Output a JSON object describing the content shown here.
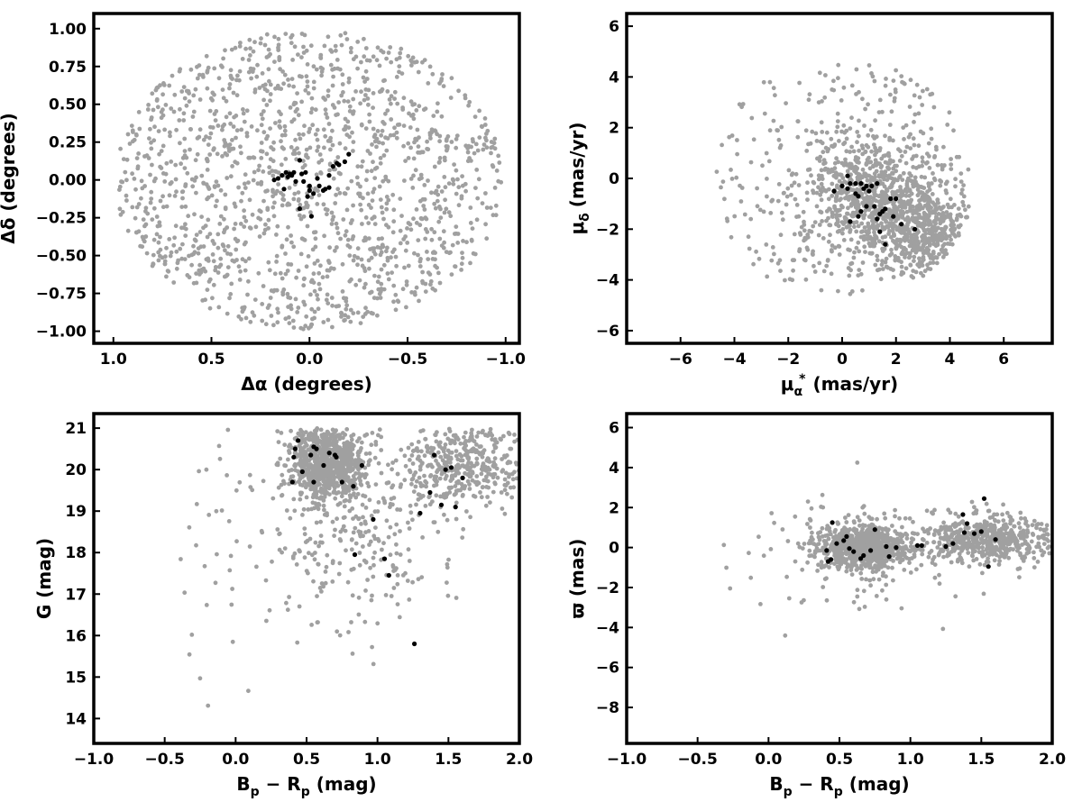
{
  "colors": {
    "background_stars": "#a0a0a0",
    "members": "#000000",
    "frame": "#000000"
  },
  "chart_data": [
    {
      "type": "scatter",
      "xlabel": "Δα (degrees)",
      "ylabel": "Δδ (degrees)",
      "xlim": [
        1.1,
        -1.07
      ],
      "ylim": [
        -1.08,
        1.1
      ],
      "x_inverted": true,
      "xticks": [
        "1.0",
        "0.5",
        "0.0",
        "−0.5",
        "−1.0"
      ],
      "xtick_values": [
        1.0,
        0.5,
        0.0,
        -0.5,
        -1.0
      ],
      "yticks": [
        "−1.00",
        "−0.75",
        "−0.50",
        "−0.25",
        "0.00",
        "0.25",
        "0.50",
        "0.75",
        "1.00"
      ],
      "ytick_values": [
        -1.0,
        -0.75,
        -0.5,
        -0.25,
        0.0,
        0.25,
        0.5,
        0.75,
        1.0
      ],
      "grid": false,
      "series": [
        {
          "role": "field",
          "color": "#a0a0a0",
          "distribution": "uniform disk",
          "center": [
            0.0,
            0.0
          ],
          "radius": 1.0,
          "count": 1500
        },
        {
          "role": "members",
          "color": "#000000",
          "points": [
            [
              0.18,
              0.0
            ],
            [
              0.16,
              0.01
            ],
            [
              0.14,
              0.03
            ],
            [
              0.12,
              0.05
            ],
            [
              0.11,
              0.02
            ],
            [
              0.1,
              0.04
            ],
            [
              0.09,
              0.03
            ],
            [
              0.08,
              0.05
            ],
            [
              0.07,
              -0.01
            ],
            [
              0.05,
              0.13
            ],
            [
              0.04,
              0.04
            ],
            [
              0.02,
              0.05
            ],
            [
              0.0,
              -0.04
            ],
            [
              0.0,
              -0.07
            ],
            [
              0.01,
              -0.11
            ],
            [
              -0.02,
              -0.09
            ],
            [
              0.03,
              -0.01
            ],
            [
              -0.04,
              0.01
            ],
            [
              -0.05,
              -0.04
            ],
            [
              -0.08,
              -0.06
            ],
            [
              -0.1,
              0.03
            ],
            [
              -0.12,
              0.09
            ],
            [
              -0.14,
              0.11
            ],
            [
              -0.15,
              0.1
            ],
            [
              -0.18,
              0.12
            ],
            [
              -0.2,
              0.17
            ],
            [
              0.13,
              -0.06
            ],
            [
              0.05,
              -0.19
            ],
            [
              -0.01,
              -0.24
            ],
            [
              -0.07,
              -0.07
            ],
            [
              -0.1,
              -0.05
            ]
          ]
        }
      ]
    },
    {
      "type": "scatter",
      "xlabel": "μα* (mas/yr)",
      "ylabel": "μδ (mas/yr)",
      "xlim": [
        -8.0,
        7.8
      ],
      "ylim": [
        -6.5,
        6.5
      ],
      "xticks": [
        "−6",
        "−4",
        "−2",
        "0",
        "2",
        "4",
        "6"
      ],
      "xtick_values": [
        -6,
        -4,
        -2,
        0,
        2,
        4,
        6
      ],
      "yticks": [
        "−6",
        "−4",
        "−2",
        "0",
        "2",
        "4",
        "6"
      ],
      "ytick_values": [
        -6,
        -4,
        -2,
        0,
        2,
        4,
        6
      ],
      "grid": false,
      "series": [
        {
          "role": "field",
          "color": "#a0a0a0",
          "distribution": "disk",
          "center": [
            0.0,
            0.0
          ],
          "radius": 5.0,
          "count": 1500
        },
        {
          "role": "members",
          "color": "#000000",
          "points": [
            [
              -0.3,
              -0.5
            ],
            [
              0.0,
              -0.3
            ],
            [
              0.2,
              0.1
            ],
            [
              0.3,
              -0.2
            ],
            [
              0.5,
              -0.6
            ],
            [
              0.6,
              -0.7
            ],
            [
              0.7,
              -0.2
            ],
            [
              0.8,
              -0.4
            ],
            [
              0.9,
              -0.3
            ],
            [
              1.0,
              -0.5
            ],
            [
              1.1,
              -0.3
            ],
            [
              1.2,
              -1.1
            ],
            [
              1.3,
              -0.2
            ],
            [
              0.9,
              -1.1
            ],
            [
              0.7,
              -1.3
            ],
            [
              0.6,
              -1.5
            ],
            [
              1.4,
              -1.4
            ],
            [
              1.5,
              -1.3
            ],
            [
              1.6,
              -1.2
            ],
            [
              1.8,
              -0.8
            ],
            [
              2.0,
              -0.8
            ],
            [
              2.2,
              -1.8
            ],
            [
              1.4,
              -2.1
            ],
            [
              1.6,
              -2.6
            ],
            [
              2.7,
              -2.0
            ],
            [
              0.3,
              -1.7
            ],
            [
              0.2,
              -0.4
            ],
            [
              1.3,
              -1.6
            ],
            [
              1.9,
              -1.5
            ],
            [
              0.5,
              -0.2
            ]
          ]
        }
      ]
    },
    {
      "type": "scatter",
      "xlabel": "Bp − Rp (mag)",
      "ylabel": "G (mag)",
      "xlim": [
        -1.0,
        2.0
      ],
      "ylim": [
        13.4,
        21.35
      ],
      "xticks": [
        "−1.0",
        "−0.5",
        "0.0",
        "0.5",
        "1.0",
        "1.5",
        "2.0"
      ],
      "xtick_values": [
        -1.0,
        -0.5,
        0.0,
        0.5,
        1.0,
        1.5,
        2.0
      ],
      "yticks": [
        "14",
        "15",
        "16",
        "17",
        "18",
        "19",
        "20",
        "21"
      ],
      "ytick_values": [
        14,
        15,
        16,
        17,
        18,
        19,
        20,
        21
      ],
      "grid": false,
      "series": [
        {
          "role": "field",
          "color": "#a0a0a0",
          "distribution": "colour-magnitude diagram",
          "count": 1500
        },
        {
          "role": "members",
          "color": "#000000",
          "points": [
            [
              0.41,
              20.3
            ],
            [
              0.42,
              20.5
            ],
            [
              0.44,
              20.7
            ],
            [
              0.47,
              19.95
            ],
            [
              0.53,
              20.35
            ],
            [
              0.55,
              20.55
            ],
            [
              0.57,
              20.5
            ],
            [
              0.55,
              19.7
            ],
            [
              0.62,
              20.1
            ],
            [
              0.66,
              20.4
            ],
            [
              0.7,
              20.35
            ],
            [
              0.71,
              20.3
            ],
            [
              0.75,
              19.7
            ],
            [
              0.83,
              19.6
            ],
            [
              0.89,
              20.1
            ],
            [
              0.84,
              17.95
            ],
            [
              1.05,
              17.85
            ],
            [
              1.08,
              17.45
            ],
            [
              0.4,
              19.7
            ],
            [
              1.3,
              18.95
            ],
            [
              1.37,
              19.45
            ],
            [
              1.4,
              20.35
            ],
            [
              1.45,
              19.15
            ],
            [
              1.48,
              20.0
            ],
            [
              1.52,
              20.05
            ],
            [
              1.55,
              19.1
            ],
            [
              1.6,
              19.8
            ],
            [
              1.26,
              15.8
            ],
            [
              0.97,
              18.8
            ]
          ]
        }
      ]
    },
    {
      "type": "scatter",
      "xlabel": "Bp − Rp (mag)",
      "ylabel": "ϖ (mas)",
      "xlim": [
        -1.0,
        2.0
      ],
      "ylim": [
        -9.8,
        6.7
      ],
      "xticks": [
        "−1.0",
        "−0.5",
        "0.0",
        "0.5",
        "1.0",
        "1.5",
        "2.0"
      ],
      "xtick_values": [
        -1.0,
        -0.5,
        0.0,
        0.5,
        1.0,
        1.5,
        2.0
      ],
      "yticks": [
        "−8",
        "−6",
        "−4",
        "−2",
        "0",
        "2",
        "4",
        "6"
      ],
      "ytick_values": [
        -8,
        -6,
        -4,
        -2,
        0,
        2,
        4,
        6
      ],
      "grid": false,
      "series": [
        {
          "role": "field",
          "color": "#a0a0a0",
          "distribution": "parallax vs colour",
          "count": 1500
        },
        {
          "role": "members",
          "color": "#000000",
          "points": [
            [
              0.41,
              -0.15
            ],
            [
              0.42,
              -0.7
            ],
            [
              0.44,
              -0.6
            ],
            [
              0.45,
              1.25
            ],
            [
              0.48,
              0.2
            ],
            [
              0.53,
              0.35
            ],
            [
              0.55,
              0.55
            ],
            [
              0.57,
              -0.05
            ],
            [
              0.6,
              -0.2
            ],
            [
              0.65,
              -0.55
            ],
            [
              0.67,
              -0.4
            ],
            [
              0.72,
              -0.15
            ],
            [
              0.75,
              0.9
            ],
            [
              0.83,
              0.05
            ],
            [
              0.85,
              -0.45
            ],
            [
              0.9,
              0.0
            ],
            [
              1.05,
              0.1
            ],
            [
              1.08,
              0.1
            ],
            [
              1.25,
              0.05
            ],
            [
              1.3,
              0.2
            ],
            [
              1.37,
              1.65
            ],
            [
              1.4,
              1.2
            ],
            [
              1.45,
              0.7
            ],
            [
              1.5,
              0.8
            ],
            [
              1.52,
              2.45
            ],
            [
              1.55,
              -0.95
            ],
            [
              1.6,
              0.4
            ],
            [
              1.38,
              0.75
            ]
          ]
        }
      ]
    }
  ]
}
